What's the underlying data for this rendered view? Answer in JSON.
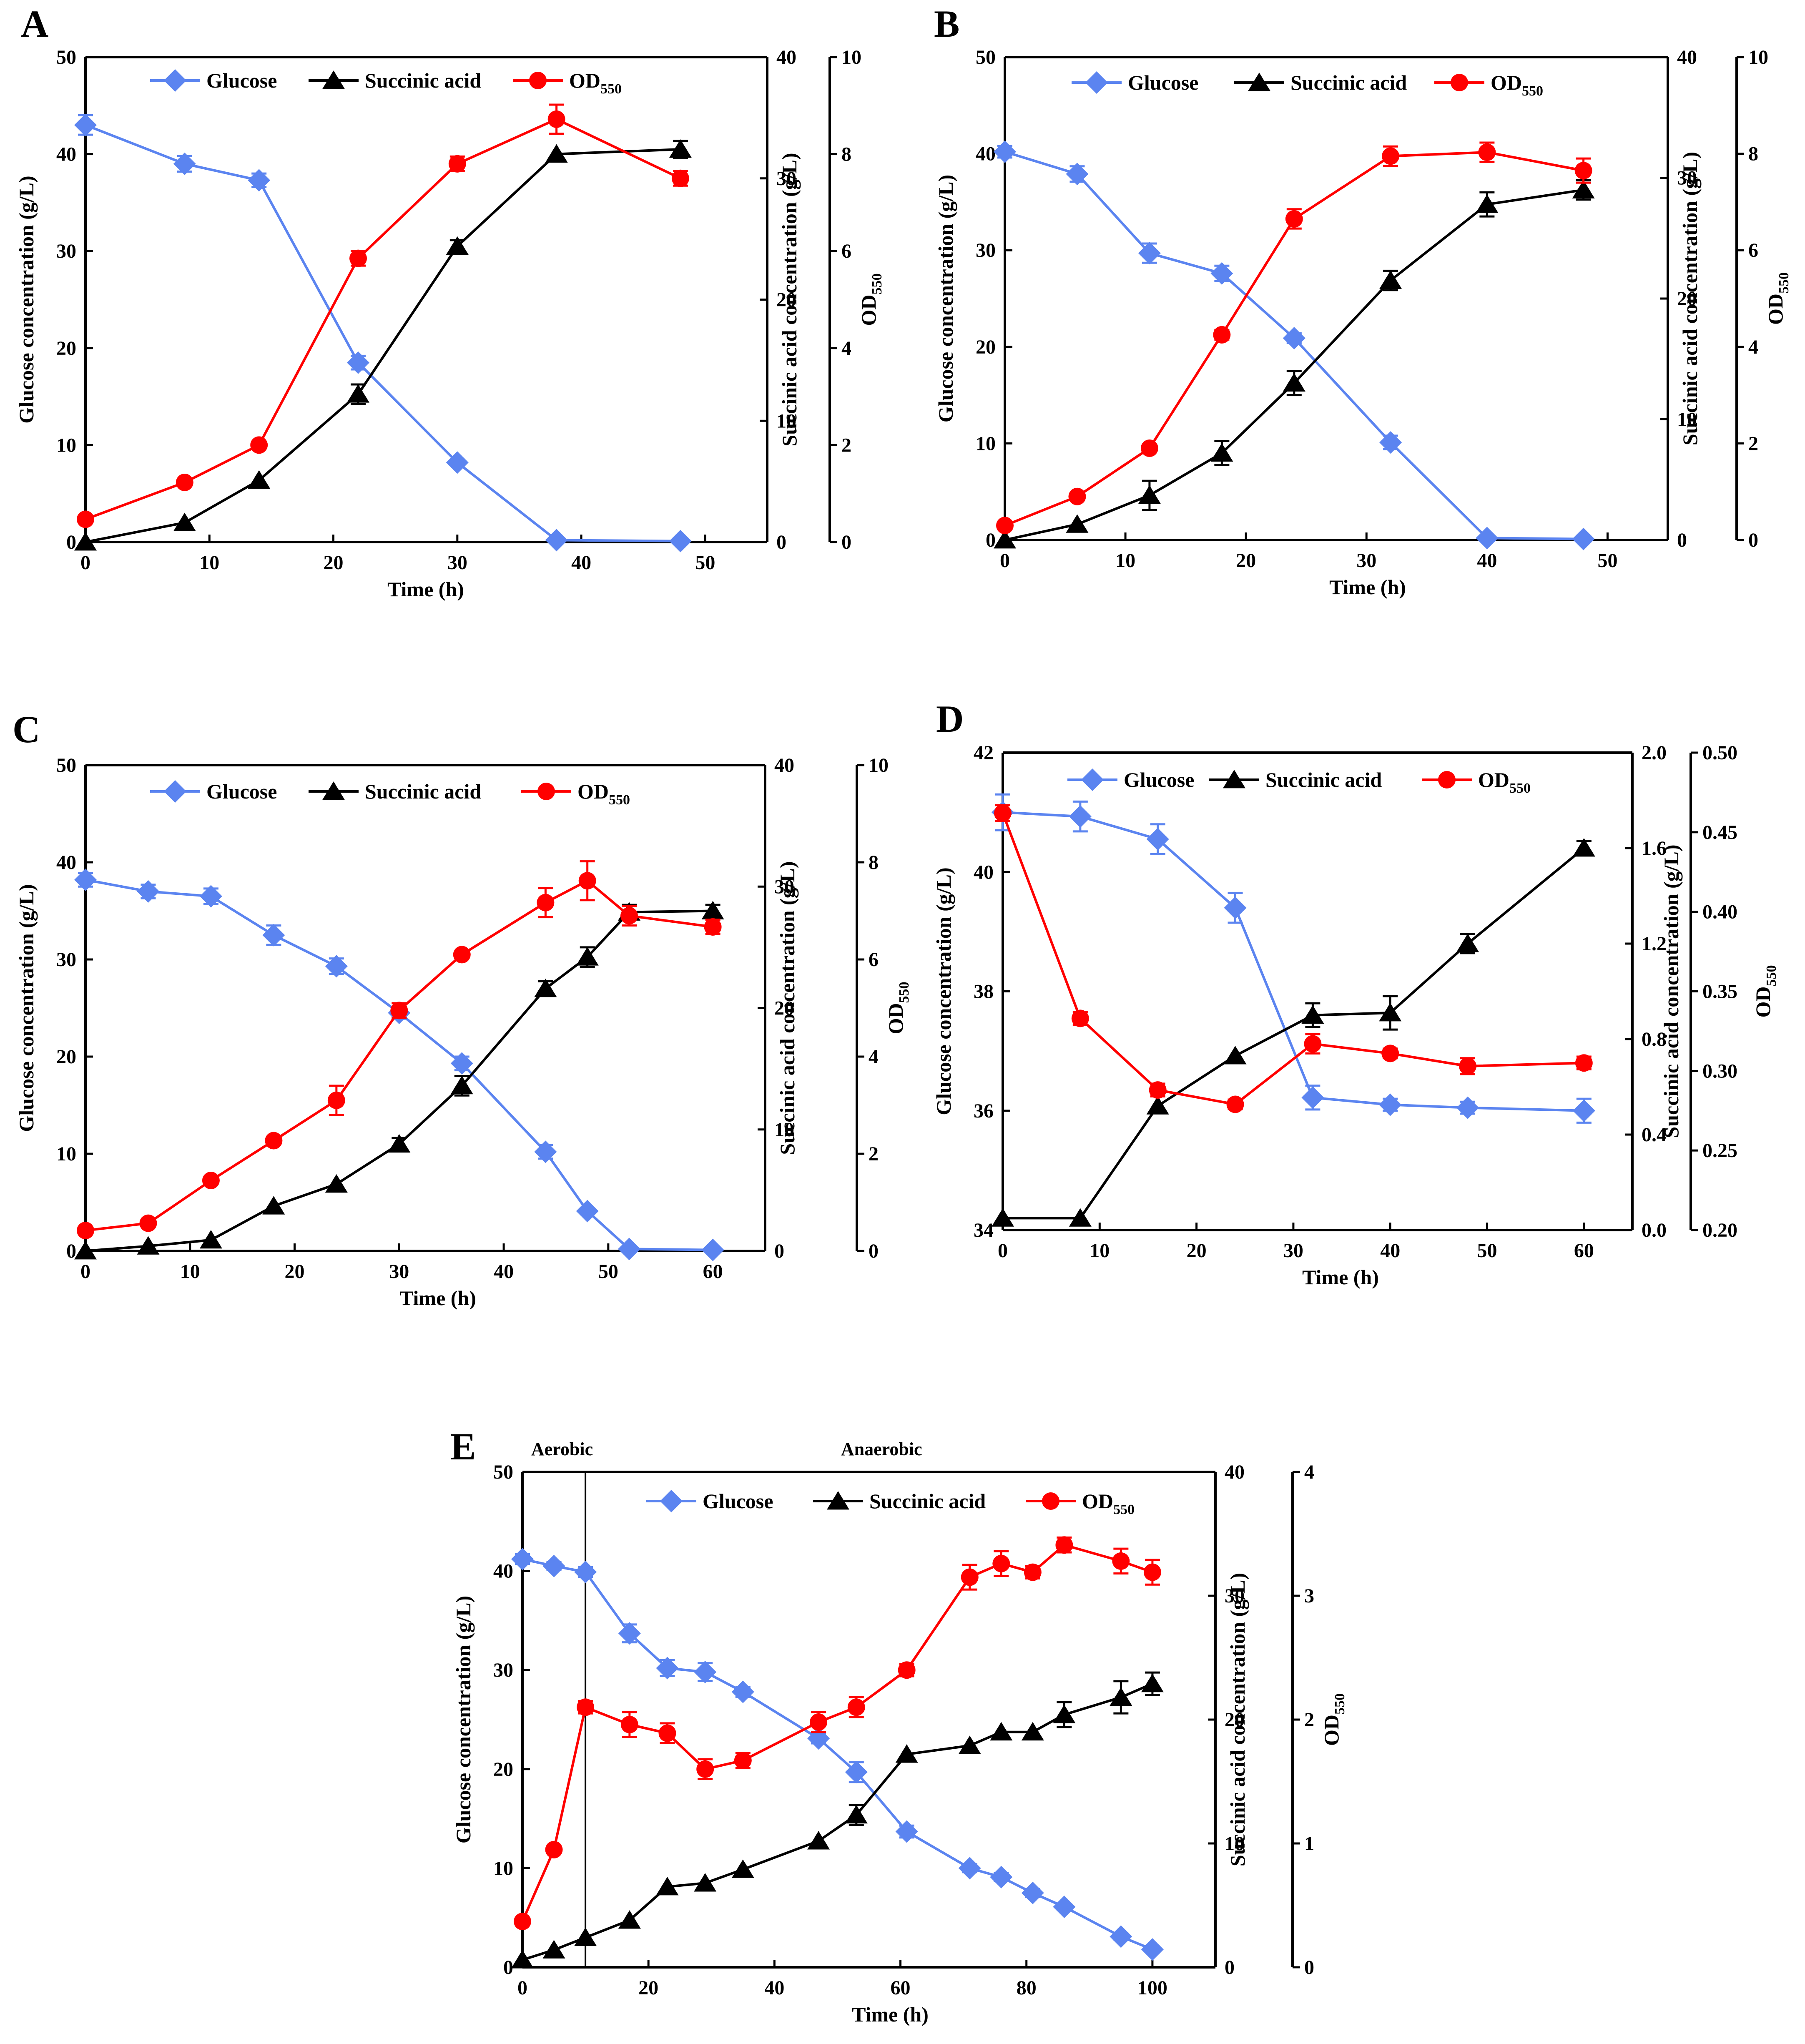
{
  "colors": {
    "glucose": "#5B84F0",
    "succinic": "#000000",
    "od": "#FF0000",
    "axis": "#000000"
  },
  "legend": {
    "glucose": "Glucose",
    "succinic": "Succinic acid",
    "od_main": "OD",
    "od_sub": "550"
  },
  "chart_data": [
    {
      "id": "A",
      "type": "line",
      "panel_label": "A",
      "xlabel": "Time (h)",
      "xlim": [
        0,
        55
      ],
      "xticks": [
        "0",
        "10",
        "20",
        "30",
        "40",
        "50"
      ],
      "ylabel": "Glucose concentration (g/L)",
      "ylim": [
        0,
        50
      ],
      "yticks": [
        "0",
        "10",
        "20",
        "30",
        "40",
        "50"
      ],
      "y2label": "Succinic acid concentration (g/L)",
      "y2lim": [
        0,
        40
      ],
      "y2ticks": [
        "0",
        "10",
        "20",
        "30",
        "40"
      ],
      "y3label_main": "OD",
      "y3label_sub": "550",
      "y3lim": [
        0,
        10
      ],
      "y3ticks": [
        "0",
        "2",
        "4",
        "6",
        "8",
        "10"
      ],
      "legend_position": "top-center",
      "series": [
        {
          "name": "Glucose",
          "axis": "y",
          "x": [
            0,
            8,
            14,
            22,
            30,
            38,
            48
          ],
          "values": [
            43.0,
            39.0,
            37.3,
            18.5,
            8.2,
            0.2,
            0.1
          ],
          "err": [
            1.0,
            0.8,
            0.7,
            0.7,
            0.3,
            0,
            0
          ]
        },
        {
          "name": "Succinic acid",
          "axis": "y2",
          "x": [
            0,
            8,
            14,
            22,
            30,
            38,
            48
          ],
          "values": [
            0,
            1.6,
            5.1,
            12.2,
            24.4,
            32.0,
            32.4
          ],
          "err": [
            0,
            0,
            0,
            0.8,
            0.5,
            0,
            0.7
          ]
        },
        {
          "name": "OD550",
          "axis": "y3",
          "x": [
            0,
            8,
            14,
            22,
            30,
            38,
            48
          ],
          "values": [
            0.47,
            1.23,
            2.0,
            5.85,
            7.8,
            8.72,
            7.5
          ],
          "err": [
            0,
            0,
            0,
            0.15,
            0.15,
            0.3,
            0.15
          ]
        }
      ]
    },
    {
      "id": "B",
      "type": "line",
      "panel_label": "B",
      "xlabel": "Time (h)",
      "xlim": [
        0,
        55
      ],
      "xticks": [
        "0",
        "10",
        "20",
        "30",
        "40",
        "50"
      ],
      "ylabel": "Glucose concentration (g/L)",
      "ylim": [
        0,
        50
      ],
      "yticks": [
        "0",
        "10",
        "20",
        "30",
        "40",
        "50"
      ],
      "y2label": "Succinic acid concentration (g/L)",
      "y2lim": [
        0,
        40
      ],
      "y2ticks": [
        "0",
        "10",
        "20",
        "30",
        "40"
      ],
      "y3label_main": "OD",
      "y3label_sub": "550",
      "y3lim": [
        0,
        10
      ],
      "y3ticks": [
        "0",
        "2",
        "4",
        "6",
        "8",
        "10"
      ],
      "legend_position": "top-center",
      "series": [
        {
          "name": "Glucose",
          "axis": "y",
          "x": [
            0,
            6,
            12,
            18,
            24,
            32,
            40,
            48
          ],
          "values": [
            40.2,
            37.9,
            29.7,
            27.6,
            20.9,
            10.1,
            0.2,
            0.1
          ],
          "err": [
            0.6,
            0.8,
            1.0,
            0.8,
            0.5,
            0.7,
            0,
            0
          ]
        },
        {
          "name": "Succinic acid",
          "axis": "y2",
          "x": [
            0,
            6,
            12,
            18,
            24,
            32,
            40,
            48
          ],
          "values": [
            0,
            1.3,
            3.7,
            7.2,
            13.0,
            21.5,
            27.8,
            29.0
          ],
          "err": [
            0,
            0,
            1.2,
            1.0,
            1.0,
            0.8,
            1.0,
            0.8
          ]
        },
        {
          "name": "OD550",
          "axis": "y3",
          "x": [
            0,
            6,
            12,
            18,
            24,
            32,
            40,
            48
          ],
          "values": [
            0.3,
            0.9,
            1.9,
            4.25,
            6.65,
            7.95,
            8.03,
            7.65
          ],
          "err": [
            0,
            0,
            0,
            0.1,
            0.2,
            0.2,
            0.2,
            0.25
          ]
        }
      ]
    },
    {
      "id": "C",
      "type": "line",
      "panel_label": "C",
      "xlabel": "Time (h)",
      "xlim": [
        0,
        65
      ],
      "xticks": [
        "0",
        "10",
        "20",
        "30",
        "40",
        "50",
        "60"
      ],
      "ylabel": "Glucose concentration (g/L)",
      "ylim": [
        0,
        50
      ],
      "yticks": [
        "0",
        "10",
        "20",
        "30",
        "40",
        "50"
      ],
      "y2label": "Succinic acid concentration (g/L)",
      "y2lim": [
        0,
        40
      ],
      "y2ticks": [
        "0",
        "10",
        "20",
        "30",
        "40"
      ],
      "y3label_main": "OD",
      "y3label_sub": "550",
      "y3lim": [
        0,
        10
      ],
      "y3ticks": [
        "0",
        "2",
        "4",
        "6",
        "8",
        "10"
      ],
      "legend_position": "top-center",
      "series": [
        {
          "name": "Glucose",
          "axis": "y",
          "x": [
            0,
            6,
            12,
            18,
            24,
            30,
            36,
            44,
            48,
            52,
            60
          ],
          "values": [
            38.2,
            37.0,
            36.5,
            32.5,
            29.3,
            24.5,
            19.3,
            10.2,
            4.1,
            0.2,
            0.1
          ],
          "err": [
            0.7,
            0.7,
            0.8,
            1.0,
            0.8,
            0.6,
            0.7,
            0.7,
            0,
            0,
            0
          ]
        },
        {
          "name": "Succinic acid",
          "axis": "y2",
          "x": [
            0,
            6,
            12,
            18,
            24,
            30,
            36,
            44,
            48,
            52,
            60
          ],
          "values": [
            0,
            0.4,
            0.9,
            3.7,
            5.5,
            8.8,
            13.6,
            21.6,
            24.2,
            27.9,
            28.0
          ],
          "err": [
            0,
            0,
            0,
            0,
            0,
            0.5,
            0.8,
            0.6,
            0.8,
            0.6,
            0.5
          ]
        },
        {
          "name": "OD550",
          "axis": "y3",
          "x": [
            0,
            6,
            12,
            18,
            24,
            30,
            36,
            44,
            48,
            52,
            60
          ],
          "values": [
            0.42,
            0.57,
            1.45,
            2.27,
            3.1,
            4.95,
            6.1,
            7.17,
            7.62,
            6.9,
            6.67
          ],
          "err": [
            0,
            0,
            0,
            0,
            0.3,
            0.15,
            0,
            0.3,
            0.4,
            0.2,
            0.15
          ]
        }
      ]
    },
    {
      "id": "D",
      "type": "line",
      "panel_label": "D",
      "xlabel": "Time (h)",
      "xlim": [
        0,
        65
      ],
      "xticks": [
        "0",
        "10",
        "20",
        "30",
        "40",
        "50",
        "60"
      ],
      "ylabel": "Glucose concentration (g/L)",
      "ylim": [
        34,
        42
      ],
      "yticks": [
        "34",
        "36",
        "38",
        "40",
        "42"
      ],
      "y2label": "Succinic acid concentration (g/L)",
      "y2lim": [
        0,
        2.0
      ],
      "y2ticks": [
        "0.0",
        "0.4",
        "0.8",
        "1.2",
        "1.6",
        "2.0"
      ],
      "y3label_main": "OD",
      "y3label_sub": "550",
      "y3lim": [
        0.2,
        0.5
      ],
      "y3ticks": [
        "0.20",
        "0.25",
        "0.30",
        "0.35",
        "0.40",
        "0.45",
        "0.50"
      ],
      "legend_position": "top-center",
      "series": [
        {
          "name": "Glucose",
          "axis": "y",
          "x": [
            0,
            8,
            16,
            24,
            32,
            40,
            48,
            60
          ],
          "values": [
            41.0,
            40.93,
            40.55,
            39.4,
            36.22,
            36.1,
            36.05,
            36.0
          ],
          "err": [
            0.3,
            0.25,
            0.25,
            0.25,
            0.2,
            0.1,
            0.1,
            0.2
          ]
        },
        {
          "name": "Succinic acid",
          "axis": "y2",
          "x": [
            0,
            8,
            16,
            24,
            32,
            40,
            48,
            60
          ],
          "values": [
            0.05,
            0.05,
            0.52,
            0.73,
            0.9,
            0.91,
            1.2,
            1.6
          ],
          "err": [
            0,
            0,
            0,
            0,
            0.05,
            0.07,
            0.04,
            0.03
          ]
        },
        {
          "name": "OD550",
          "axis": "y3",
          "x": [
            0,
            8,
            16,
            24,
            32,
            40,
            48,
            60
          ],
          "values": [
            0.462,
            0.333,
            0.288,
            0.279,
            0.317,
            0.311,
            0.303,
            0.305
          ],
          "err": [
            0.005,
            0.004,
            0.004,
            0.003,
            0.006,
            0.003,
            0.005,
            0.004
          ]
        }
      ]
    },
    {
      "id": "E",
      "type": "line",
      "panel_label": "E",
      "xlabel": "Time (h)",
      "xlim": [
        0,
        110
      ],
      "xticks": [
        "0",
        "20",
        "40",
        "60",
        "80",
        "100"
      ],
      "ylabel": "Glucose concentration (g/L)",
      "ylim": [
        0,
        50
      ],
      "yticks": [
        "0",
        "10",
        "20",
        "30",
        "40",
        "50"
      ],
      "y2label": "Succinic acid concentration (g/L)",
      "y2lim": [
        0,
        40
      ],
      "y2ticks": [
        "0",
        "10",
        "20",
        "30",
        "40"
      ],
      "y3label_main": "OD",
      "y3label_sub": "550",
      "y3lim": [
        0,
        4
      ],
      "y3ticks": [
        "0",
        "1",
        "2",
        "3",
        "4"
      ],
      "legend_position": "top-right",
      "annotations": [
        {
          "text": "Aerobic",
          "x": 0
        },
        {
          "text": "Anaerobic",
          "x": 57
        }
      ],
      "vline_x": 10,
      "series": [
        {
          "name": "Glucose",
          "axis": "y",
          "x": [
            0,
            5,
            10,
            17,
            23,
            29,
            35,
            47,
            53,
            61,
            71,
            76,
            81,
            86,
            95,
            100
          ],
          "values": [
            41.2,
            40.5,
            39.9,
            33.7,
            30.2,
            29.8,
            27.8,
            23.1,
            19.7,
            13.7,
            10.0,
            9.1,
            7.5,
            6.1,
            3.1,
            1.8
          ],
          "err": [
            0.5,
            0.4,
            0.5,
            0.9,
            0.8,
            0.9,
            0.5,
            0.5,
            1.0,
            0.6,
            0.4,
            0.4,
            0.4,
            0.3,
            0.3,
            0.3
          ]
        },
        {
          "name": "Succinic acid",
          "axis": "y2",
          "x": [
            0,
            5,
            10,
            17,
            23,
            29,
            35,
            47,
            53,
            61,
            71,
            76,
            81,
            86,
            95,
            100
          ],
          "values": [
            0.6,
            1.4,
            2.4,
            3.8,
            6.5,
            6.8,
            7.9,
            10.2,
            12.3,
            17.2,
            17.9,
            19.0,
            19.0,
            20.4,
            21.8,
            22.9
          ],
          "err": [
            0,
            0,
            0,
            0,
            0,
            0,
            0,
            0,
            0.8,
            0,
            0,
            0,
            0,
            1.0,
            1.3,
            0.9
          ]
        },
        {
          "name": "OD550",
          "axis": "y3",
          "x": [
            0,
            5,
            10,
            17,
            23,
            29,
            35,
            47,
            53,
            61,
            71,
            76,
            81,
            86,
            95,
            100
          ],
          "values": [
            0.37,
            0.95,
            2.1,
            1.96,
            1.89,
            1.6,
            1.67,
            1.98,
            2.1,
            2.4,
            3.15,
            3.26,
            3.19,
            3.41,
            3.28,
            3.19
          ],
          "err": [
            0,
            0,
            0.05,
            0.1,
            0.08,
            0.08,
            0.06,
            0.08,
            0.08,
            0.05,
            0.1,
            0.1,
            0.05,
            0.06,
            0.1,
            0.1
          ]
        }
      ]
    }
  ]
}
